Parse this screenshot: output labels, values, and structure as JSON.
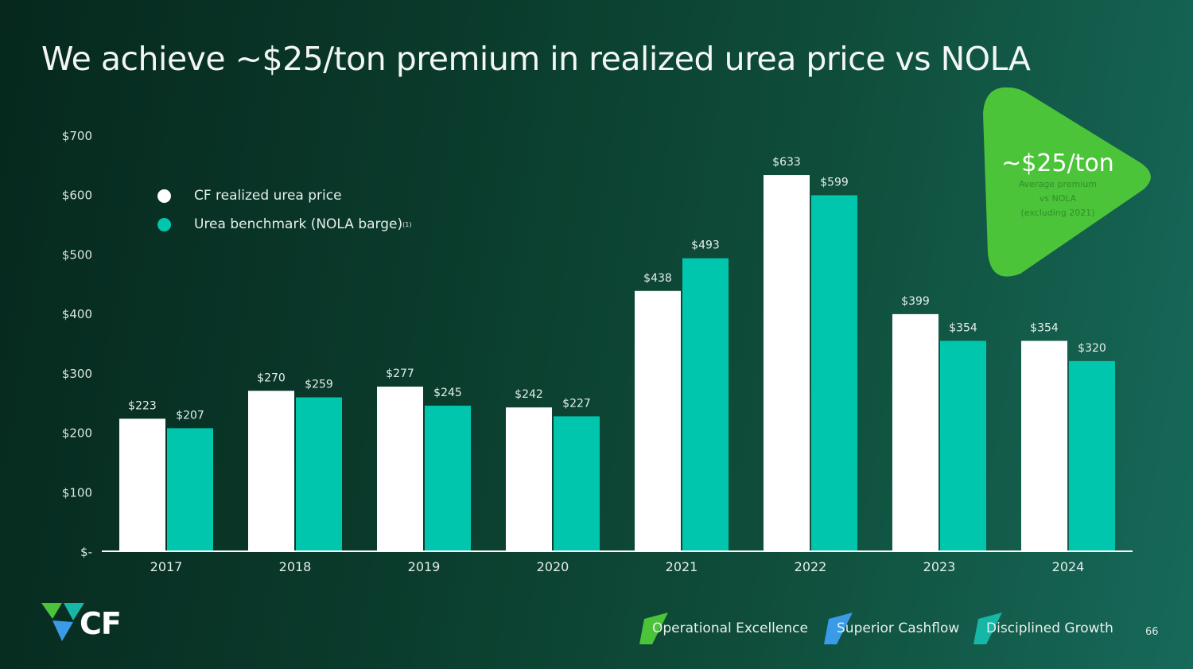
{
  "title": "We achieve ~$25/ton premium in realized urea price vs NOLA",
  "legend": {
    "items": [
      {
        "label": "CF realized urea price",
        "color": "#ffffff",
        "sup": ""
      },
      {
        "label": "Urea benchmark (NOLA barge)",
        "color": "#00c6ad",
        "sup": "(1)"
      }
    ]
  },
  "callout": {
    "big": "~$25/ton",
    "line1": "Average premium",
    "line2": "vs NOLA",
    "line3": "(excluding 2021)",
    "color": "#4cc43a"
  },
  "logo": {
    "text": "CF"
  },
  "footer": {
    "pillars": [
      {
        "label": "Operational Excellence",
        "color": "#4cc43a"
      },
      {
        "label": "Superior Cashflow",
        "color": "#3a9be8"
      },
      {
        "label": "Disciplined Growth",
        "color": "#16b7a6"
      }
    ],
    "page_number": "66"
  },
  "chart_data": {
    "type": "bar",
    "categories": [
      "2017",
      "2018",
      "2019",
      "2020",
      "2021",
      "2022",
      "2023",
      "2024"
    ],
    "series": [
      {
        "name": "CF realized urea price",
        "values": [
          223,
          270,
          277,
          242,
          438,
          633,
          399,
          354
        ],
        "labels": [
          "$223",
          "$270",
          "$277",
          "$242",
          "$438",
          "$633",
          "$399",
          "$354"
        ],
        "color": "#ffffff"
      },
      {
        "name": "Urea benchmark (NOLA barge)",
        "values": [
          207,
          259,
          245,
          227,
          493,
          599,
          354,
          320
        ],
        "labels": [
          "$207",
          "$259",
          "$245",
          "$227",
          "$493",
          "$599",
          "$354",
          "$320"
        ],
        "color": "#00c6ad"
      }
    ],
    "y_ticks": [
      0,
      100,
      200,
      300,
      400,
      500,
      600,
      700
    ],
    "y_tick_labels": [
      "$-",
      "$100",
      "$200",
      "$300",
      "$400",
      "$500",
      "$600",
      "$700"
    ],
    "ylim": [
      0,
      700
    ],
    "grid": false,
    "legend_position": "top-left"
  }
}
